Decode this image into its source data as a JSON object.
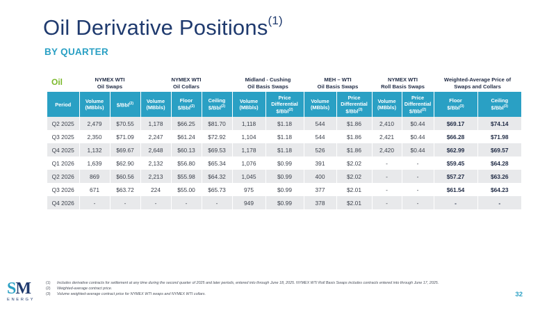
{
  "title": "Oil Derivative Positions",
  "title_footnote": "(1)",
  "subtitle": "BY QUARTER",
  "table": {
    "oil_label": "Oil",
    "groups": [
      {
        "line1": "NYMEX WTI",
        "line2": "Oil Swaps"
      },
      {
        "line1": "NYMEX WTI",
        "line2": "Oil Collars"
      },
      {
        "line1": "Midland - Cushing",
        "line2": "Oil Basis Swaps"
      },
      {
        "line1": "MEH – WTI",
        "line2": "Oil Basis Swaps"
      },
      {
        "line1": "NYMEX WTI",
        "line2": "Roll Basis Swaps"
      },
      {
        "line1": "Weighted-Average Price of",
        "line2": "Swaps and Collars"
      }
    ],
    "headers": {
      "period": "Period",
      "swaps_volume": [
        "Volume",
        "(MBbls)"
      ],
      "swaps_price": "$/Bbl",
      "collars_volume": [
        "Volume",
        "(MBbls)"
      ],
      "collars_floor": [
        "Floor",
        "$/Bbl"
      ],
      "collars_ceiling": [
        "Ceiling",
        "$/Bbl"
      ],
      "midland_volume": [
        "Volume",
        "(MBbls)"
      ],
      "midland_price": [
        "Price",
        "Differential",
        "$/Bbl"
      ],
      "meh_volume": [
        "Volume",
        "(MBbls)"
      ],
      "meh_price": [
        "Price",
        "Differential",
        "$/Bbl"
      ],
      "roll_volume": [
        "Volume",
        "(MBbls)"
      ],
      "roll_price": [
        "Price",
        "Differential",
        "$/Bbl"
      ],
      "wa_floor": [
        "Floor",
        "$/Bbl"
      ],
      "wa_ceiling": [
        "Ceiling",
        "$/Bbl"
      ],
      "fn2": "(2)",
      "fn3": "(3)"
    },
    "rows": [
      [
        "Q2 2025",
        "2,479",
        "$70.55",
        "1,178",
        "$66.25",
        "$81.70",
        "1,118",
        "$1.18",
        "544",
        "$1.86",
        "2,410",
        "$0.44",
        "$69.17",
        "$74.14"
      ],
      [
        "Q3 2025",
        "2,350",
        "$71.09",
        "2,247",
        "$61.24",
        "$72.92",
        "1,104",
        "$1.18",
        "544",
        "$1.86",
        "2,421",
        "$0.44",
        "$66.28",
        "$71.98"
      ],
      [
        "Q4 2025",
        "1,132",
        "$69.67",
        "2,648",
        "$60.13",
        "$69.53",
        "1,178",
        "$1.18",
        "526",
        "$1.86",
        "2,420",
        "$0.44",
        "$62.99",
        "$69.57"
      ],
      [
        "Q1 2026",
        "1,639",
        "$62.90",
        "2,132",
        "$56.80",
        "$65.34",
        "1,076",
        "$0.99",
        "391",
        "$2.02",
        "-",
        "-",
        "$59.45",
        "$64.28"
      ],
      [
        "Q2 2026",
        "869",
        "$60.56",
        "2,213",
        "$55.98",
        "$64.32",
        "1,045",
        "$0.99",
        "400",
        "$2.02",
        "-",
        "-",
        "$57.27",
        "$63.26"
      ],
      [
        "Q3 2026",
        "671",
        "$63.72",
        "224",
        "$55.00",
        "$65.73",
        "975",
        "$0.99",
        "377",
        "$2.01",
        "-",
        "-",
        "$61.54",
        "$64.23"
      ],
      [
        "Q4 2026",
        "-",
        "-",
        "-",
        "-",
        "-",
        "949",
        "$0.99",
        "378",
        "$2.01",
        "-",
        "-",
        "-",
        "-"
      ]
    ]
  },
  "footnotes": [
    {
      "num": "(1)",
      "text": "Includes derivative contracts for settlement at any time during the second quarter of 2025 and later periods, entered into through June 18, 2025. NYMEX WTI Roll Basis Swaps includes contracts entered into through June 17, 2025."
    },
    {
      "num": "(2)",
      "text": "Weighted-average contract price."
    },
    {
      "num": "(3)",
      "text": "Volume weighted-average contract price for NYMEX WTI swaps and NYMEX WTI collars."
    }
  ],
  "logo": {
    "letters_s": "S",
    "letters_m": "M",
    "word": "ENERGY"
  },
  "page_number": "32",
  "colors": {
    "accent": "#2aa0c4",
    "title": "#1f3a6e",
    "oil_green": "#7ab829",
    "row_shade": "#e8e9eb"
  }
}
